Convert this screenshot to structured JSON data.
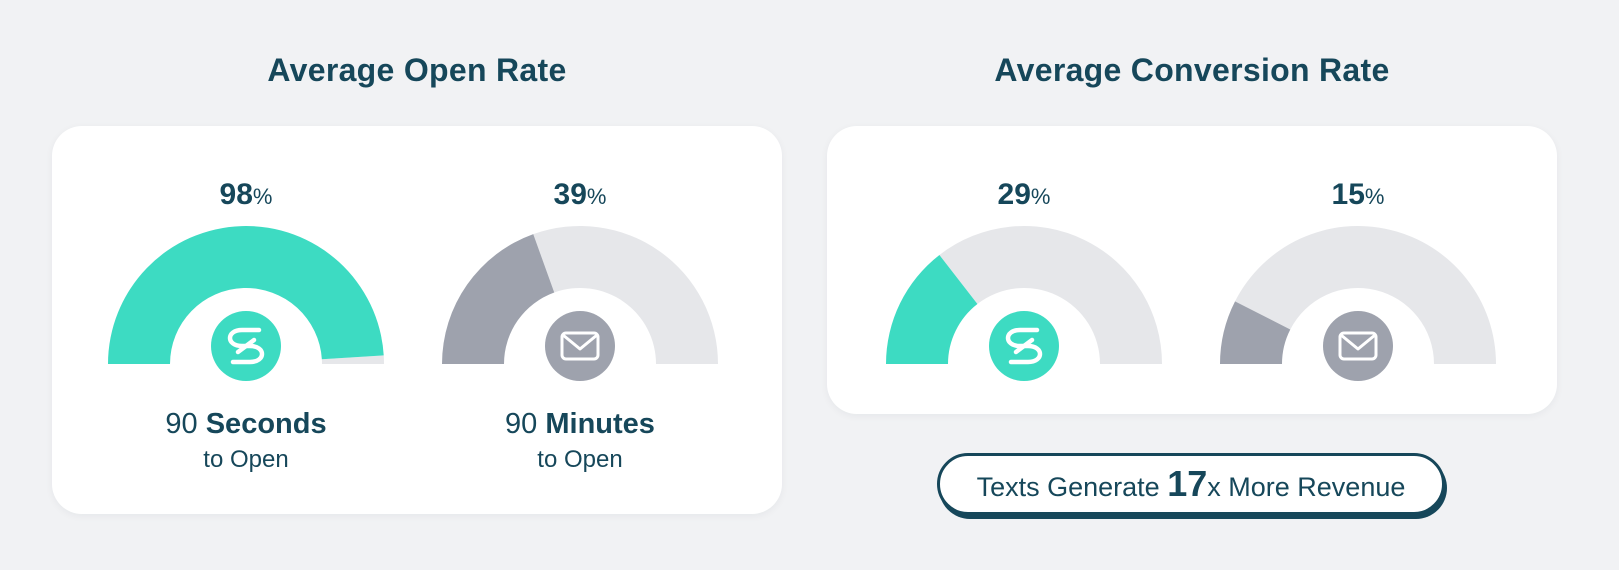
{
  "sections": {
    "left_title": "Average Open Rate",
    "right_title": "Average Conversion Rate"
  },
  "chart_data": [
    {
      "type": "gauge",
      "title": "Average Open Rate",
      "gauges": [
        {
          "channel": "sms",
          "icon": "sms-logo-icon",
          "value": 98,
          "max": 100,
          "unit": "%",
          "value_label": "98",
          "caption_number": "90",
          "caption_bold": "Seconds",
          "caption_sub": "to Open",
          "fill_color": "#3ddbc2"
        },
        {
          "channel": "email",
          "icon": "envelope-icon",
          "value": 39,
          "max": 100,
          "unit": "%",
          "value_label": "39",
          "caption_number": "90",
          "caption_bold": "Minutes",
          "caption_sub": "to Open",
          "fill_color": "#9ea2ad"
        }
      ]
    },
    {
      "type": "gauge",
      "title": "Average Conversion Rate",
      "gauges": [
        {
          "channel": "sms",
          "icon": "sms-logo-icon",
          "value": 29,
          "max": 100,
          "unit": "%",
          "value_label": "29",
          "fill_color": "#3ddbc2"
        },
        {
          "channel": "email",
          "icon": "envelope-icon",
          "value": 15,
          "max": 100,
          "unit": "%",
          "value_label": "15",
          "fill_color": "#9ea2ad"
        }
      ]
    }
  ],
  "badge": {
    "prefix": "Texts Generate ",
    "number": "17",
    "suffix": "x More Revenue"
  },
  "colors": {
    "track": "#e6e7ea",
    "text": "#16475a",
    "background": "#f1f2f4"
  }
}
